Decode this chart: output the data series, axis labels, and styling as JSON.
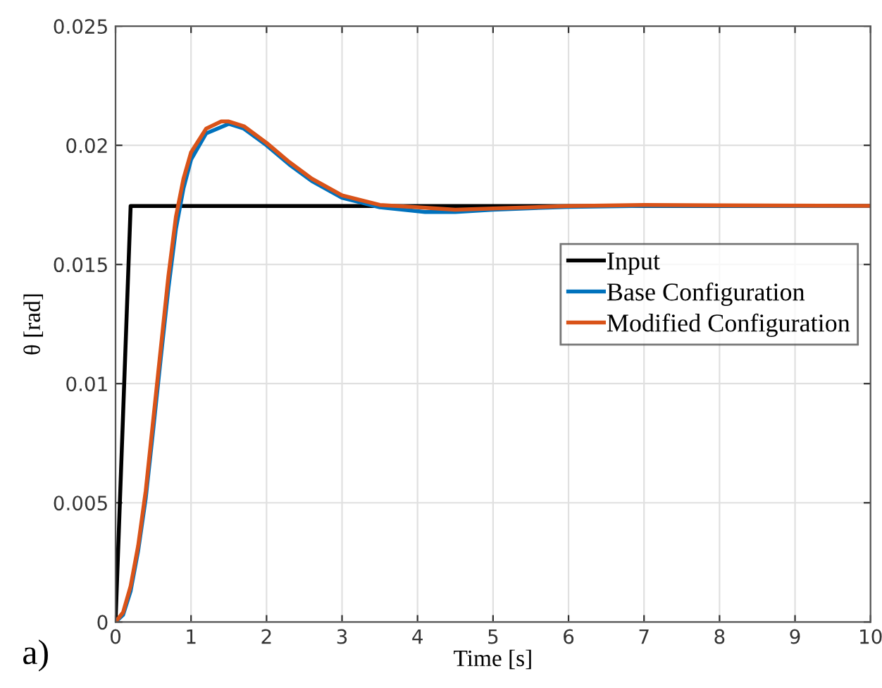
{
  "chart_data": {
    "type": "line",
    "xlabel": "Time [s]",
    "ylabel": "θ [rad]",
    "annotations": [
      "a)"
    ],
    "xlim": [
      0,
      10
    ],
    "ylim": [
      0,
      0.025
    ],
    "xticks": [
      0,
      1,
      2,
      3,
      4,
      5,
      6,
      7,
      8,
      9,
      10
    ],
    "yticks": [
      0,
      0.005,
      0.01,
      0.015,
      0.02,
      0.025
    ],
    "grid": true,
    "legend": "right",
    "marker": "none",
    "line_style": "solid",
    "series": [
      {
        "name": "Input",
        "color": "#000000",
        "x": [
          0,
          0.2,
          10
        ],
        "values": [
          0,
          0.01745,
          0.01745
        ]
      },
      {
        "name": "Base Configuration",
        "color": "#0072bd",
        "x": [
          0,
          0.1,
          0.2,
          0.3,
          0.4,
          0.5,
          0.6,
          0.7,
          0.8,
          0.9,
          1.0,
          1.2,
          1.5,
          1.7,
          2.0,
          2.3,
          2.6,
          3.0,
          3.5,
          4.1,
          4.5,
          5,
          6,
          7,
          8,
          10
        ],
        "values": [
          0,
          0.0003,
          0.0013,
          0.003,
          0.0052,
          0.0081,
          0.0111,
          0.014,
          0.0165,
          0.0182,
          0.0194,
          0.0205,
          0.0209,
          0.0207,
          0.02,
          0.0192,
          0.0185,
          0.0178,
          0.0174,
          0.0172,
          0.0172,
          0.0173,
          0.01742,
          0.01746,
          0.01746,
          0.01745
        ]
      },
      {
        "name": "Modified Configuration",
        "color": "#d95319",
        "x": [
          0,
          0.1,
          0.2,
          0.3,
          0.4,
          0.5,
          0.6,
          0.7,
          0.8,
          0.9,
          1.0,
          1.2,
          1.4,
          1.5,
          1.7,
          2.0,
          2.3,
          2.6,
          3.0,
          3.5,
          4.0,
          4.5,
          5,
          6,
          7,
          8,
          10
        ],
        "values": [
          0,
          0.0004,
          0.0015,
          0.0032,
          0.0055,
          0.0085,
          0.0115,
          0.0145,
          0.017,
          0.0186,
          0.0197,
          0.0207,
          0.021,
          0.021,
          0.0208,
          0.0201,
          0.0193,
          0.0186,
          0.0179,
          0.0175,
          0.0174,
          0.0173,
          0.01735,
          0.01745,
          0.0175,
          0.01748,
          0.01746
        ]
      }
    ]
  }
}
